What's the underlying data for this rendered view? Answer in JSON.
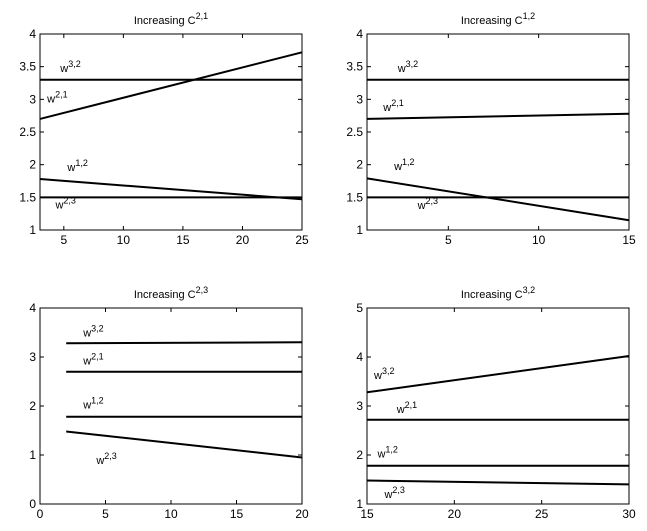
{
  "chart_data": [
    {
      "type": "line",
      "title": "Increasing C",
      "title_superscript": "2,1",
      "xlim": [
        3,
        25
      ],
      "ylim": [
        1,
        4
      ],
      "xticks": [
        5,
        10,
        15,
        20,
        25
      ],
      "yticks": [
        1,
        1.5,
        2,
        2.5,
        3,
        3.5,
        4
      ],
      "series": [
        {
          "name": "w^{3,2}",
          "base": "w",
          "superscript": "3,2",
          "x": [
            3,
            25
          ],
          "y": [
            3.3,
            3.3
          ],
          "label_at": [
            4.7,
            3.42
          ]
        },
        {
          "name": "w^{2,1}",
          "base": "w",
          "superscript": "2,1",
          "x": [
            3,
            25
          ],
          "y": [
            2.7,
            3.72
          ],
          "label_at": [
            3.6,
            2.95
          ]
        },
        {
          "name": "w^{1,2}",
          "base": "w",
          "superscript": "1,2",
          "x": [
            3,
            25
          ],
          "y": [
            1.78,
            1.47
          ],
          "label_at": [
            5.3,
            1.9
          ]
        },
        {
          "name": "w^{2,3}",
          "base": "w",
          "superscript": "2,3",
          "x": [
            3,
            25
          ],
          "y": [
            1.5,
            1.5
          ],
          "label_at": [
            4.3,
            1.33
          ]
        }
      ]
    },
    {
      "type": "line",
      "title": "Increasing  C",
      "title_superscript": "1,2",
      "xlim": [
        0.5,
        15
      ],
      "ylim": [
        1,
        4
      ],
      "xticks": [
        5,
        10,
        15
      ],
      "yticks": [
        1,
        1.5,
        2,
        2.5,
        3,
        3.5,
        4
      ],
      "series": [
        {
          "name": "w^{3,2}",
          "base": "w",
          "superscript": "3,2",
          "x": [
            0.5,
            15
          ],
          "y": [
            3.3,
            3.3
          ],
          "label_at": [
            2.2,
            3.42
          ]
        },
        {
          "name": "w^{2,1}",
          "base": "w",
          "superscript": "2,1",
          "x": [
            0.5,
            15
          ],
          "y": [
            2.7,
            2.78
          ],
          "label_at": [
            1.4,
            2.82
          ]
        },
        {
          "name": "w^{1,2}",
          "base": "w",
          "superscript": "1,2",
          "x": [
            0.5,
            15
          ],
          "y": [
            1.79,
            1.15
          ],
          "label_at": [
            2.0,
            1.92
          ]
        },
        {
          "name": "w^{2,3}",
          "base": "w",
          "superscript": "2,3",
          "x": [
            0.5,
            15
          ],
          "y": [
            1.5,
            1.5
          ],
          "label_at": [
            3.3,
            1.32
          ]
        }
      ]
    },
    {
      "type": "line",
      "title": "Increasing C",
      "title_superscript": "2,3",
      "xlim": [
        0,
        20
      ],
      "ylim": [
        0,
        4
      ],
      "xticks": [
        0,
        5,
        10,
        15,
        20
      ],
      "yticks": [
        0,
        1,
        2,
        3,
        4
      ],
      "series": [
        {
          "name": "w^{3,2}",
          "base": "w",
          "superscript": "3,2",
          "x": [
            2,
            20
          ],
          "y": [
            3.28,
            3.3
          ],
          "label_at": [
            3.3,
            3.42
          ]
        },
        {
          "name": "w^{2,1}",
          "base": "w",
          "superscript": "2,1",
          "x": [
            2,
            20
          ],
          "y": [
            2.7,
            2.7
          ],
          "label_at": [
            3.3,
            2.85
          ]
        },
        {
          "name": "w^{1,2}",
          "base": "w",
          "superscript": "1,2",
          "x": [
            2,
            20
          ],
          "y": [
            1.78,
            1.78
          ],
          "label_at": [
            3.3,
            1.95
          ]
        },
        {
          "name": "w^{2,3}",
          "base": "w",
          "superscript": "2,3",
          "x": [
            2,
            20
          ],
          "y": [
            1.48,
            0.95
          ],
          "label_at": [
            4.3,
            0.82
          ]
        }
      ]
    },
    {
      "type": "line",
      "title": "Increasing  C",
      "title_superscript": "3,2",
      "xlim": [
        15,
        30
      ],
      "ylim": [
        1,
        5
      ],
      "xticks": [
        15,
        20,
        25,
        30
      ],
      "yticks": [
        1,
        2,
        3,
        4,
        5
      ],
      "series": [
        {
          "name": "w^{3,2}",
          "base": "w",
          "superscript": "3,2",
          "x": [
            15,
            30
          ],
          "y": [
            3.28,
            4.02
          ],
          "label_at": [
            15.4,
            3.55
          ]
        },
        {
          "name": "w^{2,1}",
          "base": "w",
          "superscript": "2,1",
          "x": [
            15,
            30
          ],
          "y": [
            2.72,
            2.72
          ],
          "label_at": [
            16.7,
            2.86
          ]
        },
        {
          "name": "w^{1,2}",
          "base": "w",
          "superscript": "1,2",
          "x": [
            15,
            30
          ],
          "y": [
            1.78,
            1.78
          ],
          "label_at": [
            15.6,
            1.95
          ]
        },
        {
          "name": "w^{2,3}",
          "base": "w",
          "superscript": "2,3",
          "x": [
            15,
            30
          ],
          "y": [
            1.48,
            1.4
          ],
          "label_at": [
            16.0,
            1.12
          ]
        }
      ]
    }
  ]
}
